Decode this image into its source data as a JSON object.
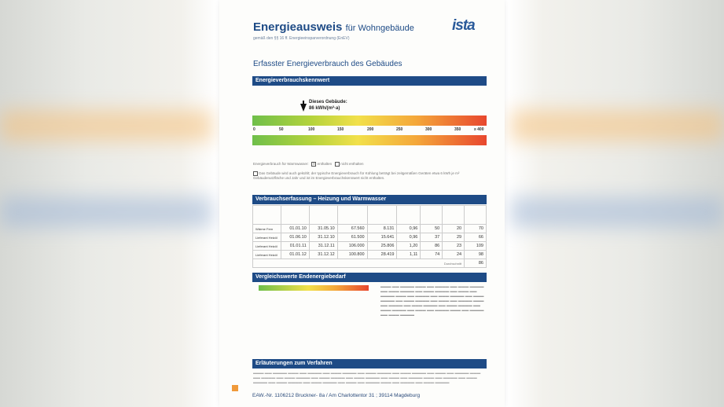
{
  "document": {
    "title_bold": "Energieausweis",
    "title_light": "für Wohngebäude",
    "subtitle": "gemäß den §§ 16 ff. Energieeinsparverordnung (EnEV)",
    "logo": "ista",
    "section_title": "Erfasster Energieverbrauch des Gebäudes"
  },
  "kennwert": {
    "bar_title": "Energieverbrauchskennwert",
    "this_building_line1": "Dieses Gebäude:",
    "this_building_line2": "86 kWh/(m²·a)",
    "ticks": [
      "0",
      "50",
      "100",
      "150",
      "200",
      "250",
      "300",
      "350",
      "≥ 400"
    ],
    "warmwater_label": "Energieverbrauch für Warmwasser:",
    "enthalten": "enthalten",
    "nicht_enthalten": "nicht enthalten",
    "note": "Das Gebäude wird auch gekühlt; der typische Energieverbrauch für Kühlung beträgt bei zeitgemäßen Geräten etwa 6 kWh je m² Gebäudenutzfläche und Jahr und ist im Energieverbrauchskennwert nicht enthalten."
  },
  "verbrauch": {
    "bar_title": "Verbrauchserfassung – Heizung und Warmwasser",
    "rows": [
      {
        "carrier": "Wärme Fern",
        "von": "01.01.10",
        "bis": "31.05.10",
        "energy": "67.560",
        "ww": "8.131",
        "klima": "0,96",
        "heiz": "50",
        "warm": "20",
        "kenn": "70"
      },
      {
        "carrier": "Lieferant Heizöl",
        "von": "01.06.10",
        "bis": "31.12.10",
        "energy": "61.500",
        "ww": "15.641",
        "klima": "0,96",
        "heiz": "37",
        "warm": "29",
        "kenn": "66"
      },
      {
        "carrier": "Lieferant Heizöl",
        "von": "01.01.11",
        "bis": "31.12.11",
        "energy": "106.000",
        "ww": "25.806",
        "klima": "1,20",
        "heiz": "86",
        "warm": "23",
        "kenn": "109"
      },
      {
        "carrier": "Lieferant Heizöl",
        "von": "01.01.12",
        "bis": "31.12.12",
        "energy": "100.800",
        "ww": "28.419",
        "klima": "1,11",
        "heiz": "74",
        "warm": "24",
        "kenn": "98"
      }
    ],
    "durchschnitt_label": "Durchschnitt",
    "durchschnitt_value": "86"
  },
  "vergleich": {
    "bar_title": "Vergleichswerte Endenergiebedarf"
  },
  "erlaeuterung": {
    "bar_title": "Erläuterungen zum Verfahren"
  },
  "footer": {
    "text": "EAW.-Nr. 1106212    Bruckner- 8a / Am Charlottentor 31 ; 39114 Magdeburg"
  }
}
